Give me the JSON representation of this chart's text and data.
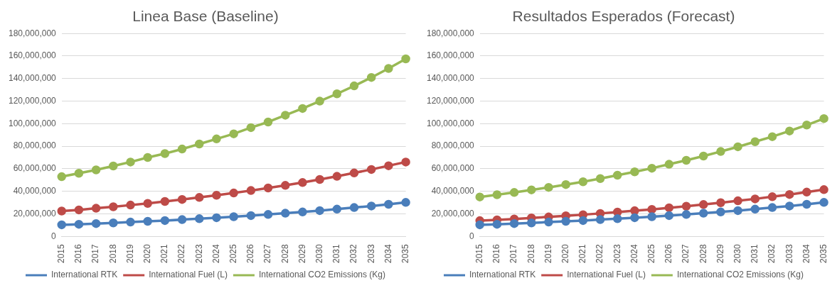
{
  "chart_data": [
    {
      "type": "line",
      "title": "Linea Base (Baseline)",
      "categories": [
        "2015",
        "2016",
        "2017",
        "2018",
        "2019",
        "2020",
        "2021",
        "2022",
        "2023",
        "2024",
        "2025",
        "2026",
        "2027",
        "2028",
        "2029",
        "2030",
        "2031",
        "2032",
        "2033",
        "2034",
        "2035"
      ],
      "series": [
        {
          "name": "International RTK",
          "color": "#4a7ebb",
          "values": [
            10300000,
            10800000,
            11400000,
            12000000,
            12700000,
            13400000,
            14100000,
            14900000,
            15700000,
            16600000,
            17500000,
            18500000,
            19500000,
            20600000,
            21700000,
            22900000,
            24200000,
            25600000,
            27000000,
            28500000,
            30200000
          ]
        },
        {
          "name": "International Fuel (L)",
          "color": "#be4b48",
          "values": [
            22500000,
            23500000,
            25000000,
            26300000,
            27800000,
            29300000,
            31000000,
            32800000,
            34600000,
            36500000,
            38500000,
            40700000,
            43000000,
            45300000,
            47800000,
            50500000,
            53300000,
            56300000,
            59400000,
            62700000,
            66000000
          ]
        },
        {
          "name": "International CO2 Emissions (Kg)",
          "color": "#98b954",
          "values": [
            53000000,
            56000000,
            59000000,
            62500000,
            66000000,
            70000000,
            73500000,
            77500000,
            82000000,
            86500000,
            91000000,
            96500000,
            101500000,
            107500000,
            113500000,
            120000000,
            126500000,
            133500000,
            141000000,
            149000000,
            157500000
          ]
        }
      ],
      "ylim": [
        0,
        180000000
      ],
      "yticks": [
        {
          "value": 0,
          "label": "0"
        },
        {
          "value": 20000000,
          "label": "20,000,000"
        },
        {
          "value": 40000000,
          "label": "40,000,000"
        },
        {
          "value": 60000000,
          "label": "60,000,000"
        },
        {
          "value": 80000000,
          "label": "80,000,000"
        },
        {
          "value": 100000000,
          "label": "100,000,000"
        },
        {
          "value": 120000000,
          "label": "120,000,000"
        },
        {
          "value": 140000000,
          "label": "140,000,000"
        },
        {
          "value": 160000000,
          "label": "160,000,000"
        },
        {
          "value": 180000000,
          "label": "180,000,000"
        }
      ],
      "grid": "y",
      "legend": "bottom",
      "marker": "circle",
      "line_style": "solid"
    },
    {
      "type": "line",
      "title": "Resultados Esperados (Forecast)",
      "categories": [
        "2015",
        "2016",
        "2017",
        "2018",
        "2019",
        "2020",
        "2021",
        "2022",
        "2023",
        "2024",
        "2025",
        "2026",
        "2027",
        "2028",
        "2029",
        "2030",
        "2031",
        "2032",
        "2033",
        "2034",
        "2035"
      ],
      "series": [
        {
          "name": "International RTK",
          "color": "#4a7ebb",
          "values": [
            10300000,
            10800000,
            11400000,
            12000000,
            12700000,
            13400000,
            14100000,
            14900000,
            15700000,
            16600000,
            17500000,
            18500000,
            19500000,
            20600000,
            21700000,
            22900000,
            24200000,
            25600000,
            27000000,
            28500000,
            30200000
          ]
        },
        {
          "name": "International Fuel (L)",
          "color": "#be4b48",
          "values": [
            14000000,
            14700000,
            15500000,
            16400000,
            17300000,
            18300000,
            19300000,
            20400000,
            21600000,
            22800000,
            24000000,
            25400000,
            26800000,
            28300000,
            29900000,
            31600000,
            33300000,
            35200000,
            37200000,
            39300000,
            41500000
          ]
        },
        {
          "name": "International CO2 Emissions (Kg)",
          "color": "#98b954",
          "values": [
            35000000,
            37000000,
            39000000,
            41300000,
            43500000,
            46000000,
            48500000,
            51300000,
            54300000,
            57300000,
            60500000,
            64000000,
            67500000,
            71300000,
            75300000,
            79500000,
            84000000,
            88500000,
            93500000,
            98800000,
            104500000
          ]
        }
      ],
      "ylim": [
        0,
        180000000
      ],
      "yticks": [
        {
          "value": 0,
          "label": "0"
        },
        {
          "value": 20000000,
          "label": "20,000,000"
        },
        {
          "value": 40000000,
          "label": "40,000,000"
        },
        {
          "value": 60000000,
          "label": "60,000,000"
        },
        {
          "value": 80000000,
          "label": "80,000,000"
        },
        {
          "value": 100000000,
          "label": "100,000,000"
        },
        {
          "value": 120000000,
          "label": "120,000,000"
        },
        {
          "value": 140000000,
          "label": "140,000,000"
        },
        {
          "value": 160000000,
          "label": "160,000,000"
        },
        {
          "value": 180000000,
          "label": "180,000,000"
        }
      ],
      "grid": "y",
      "legend": "bottom",
      "marker": "circle",
      "line_style": "solid"
    }
  ]
}
